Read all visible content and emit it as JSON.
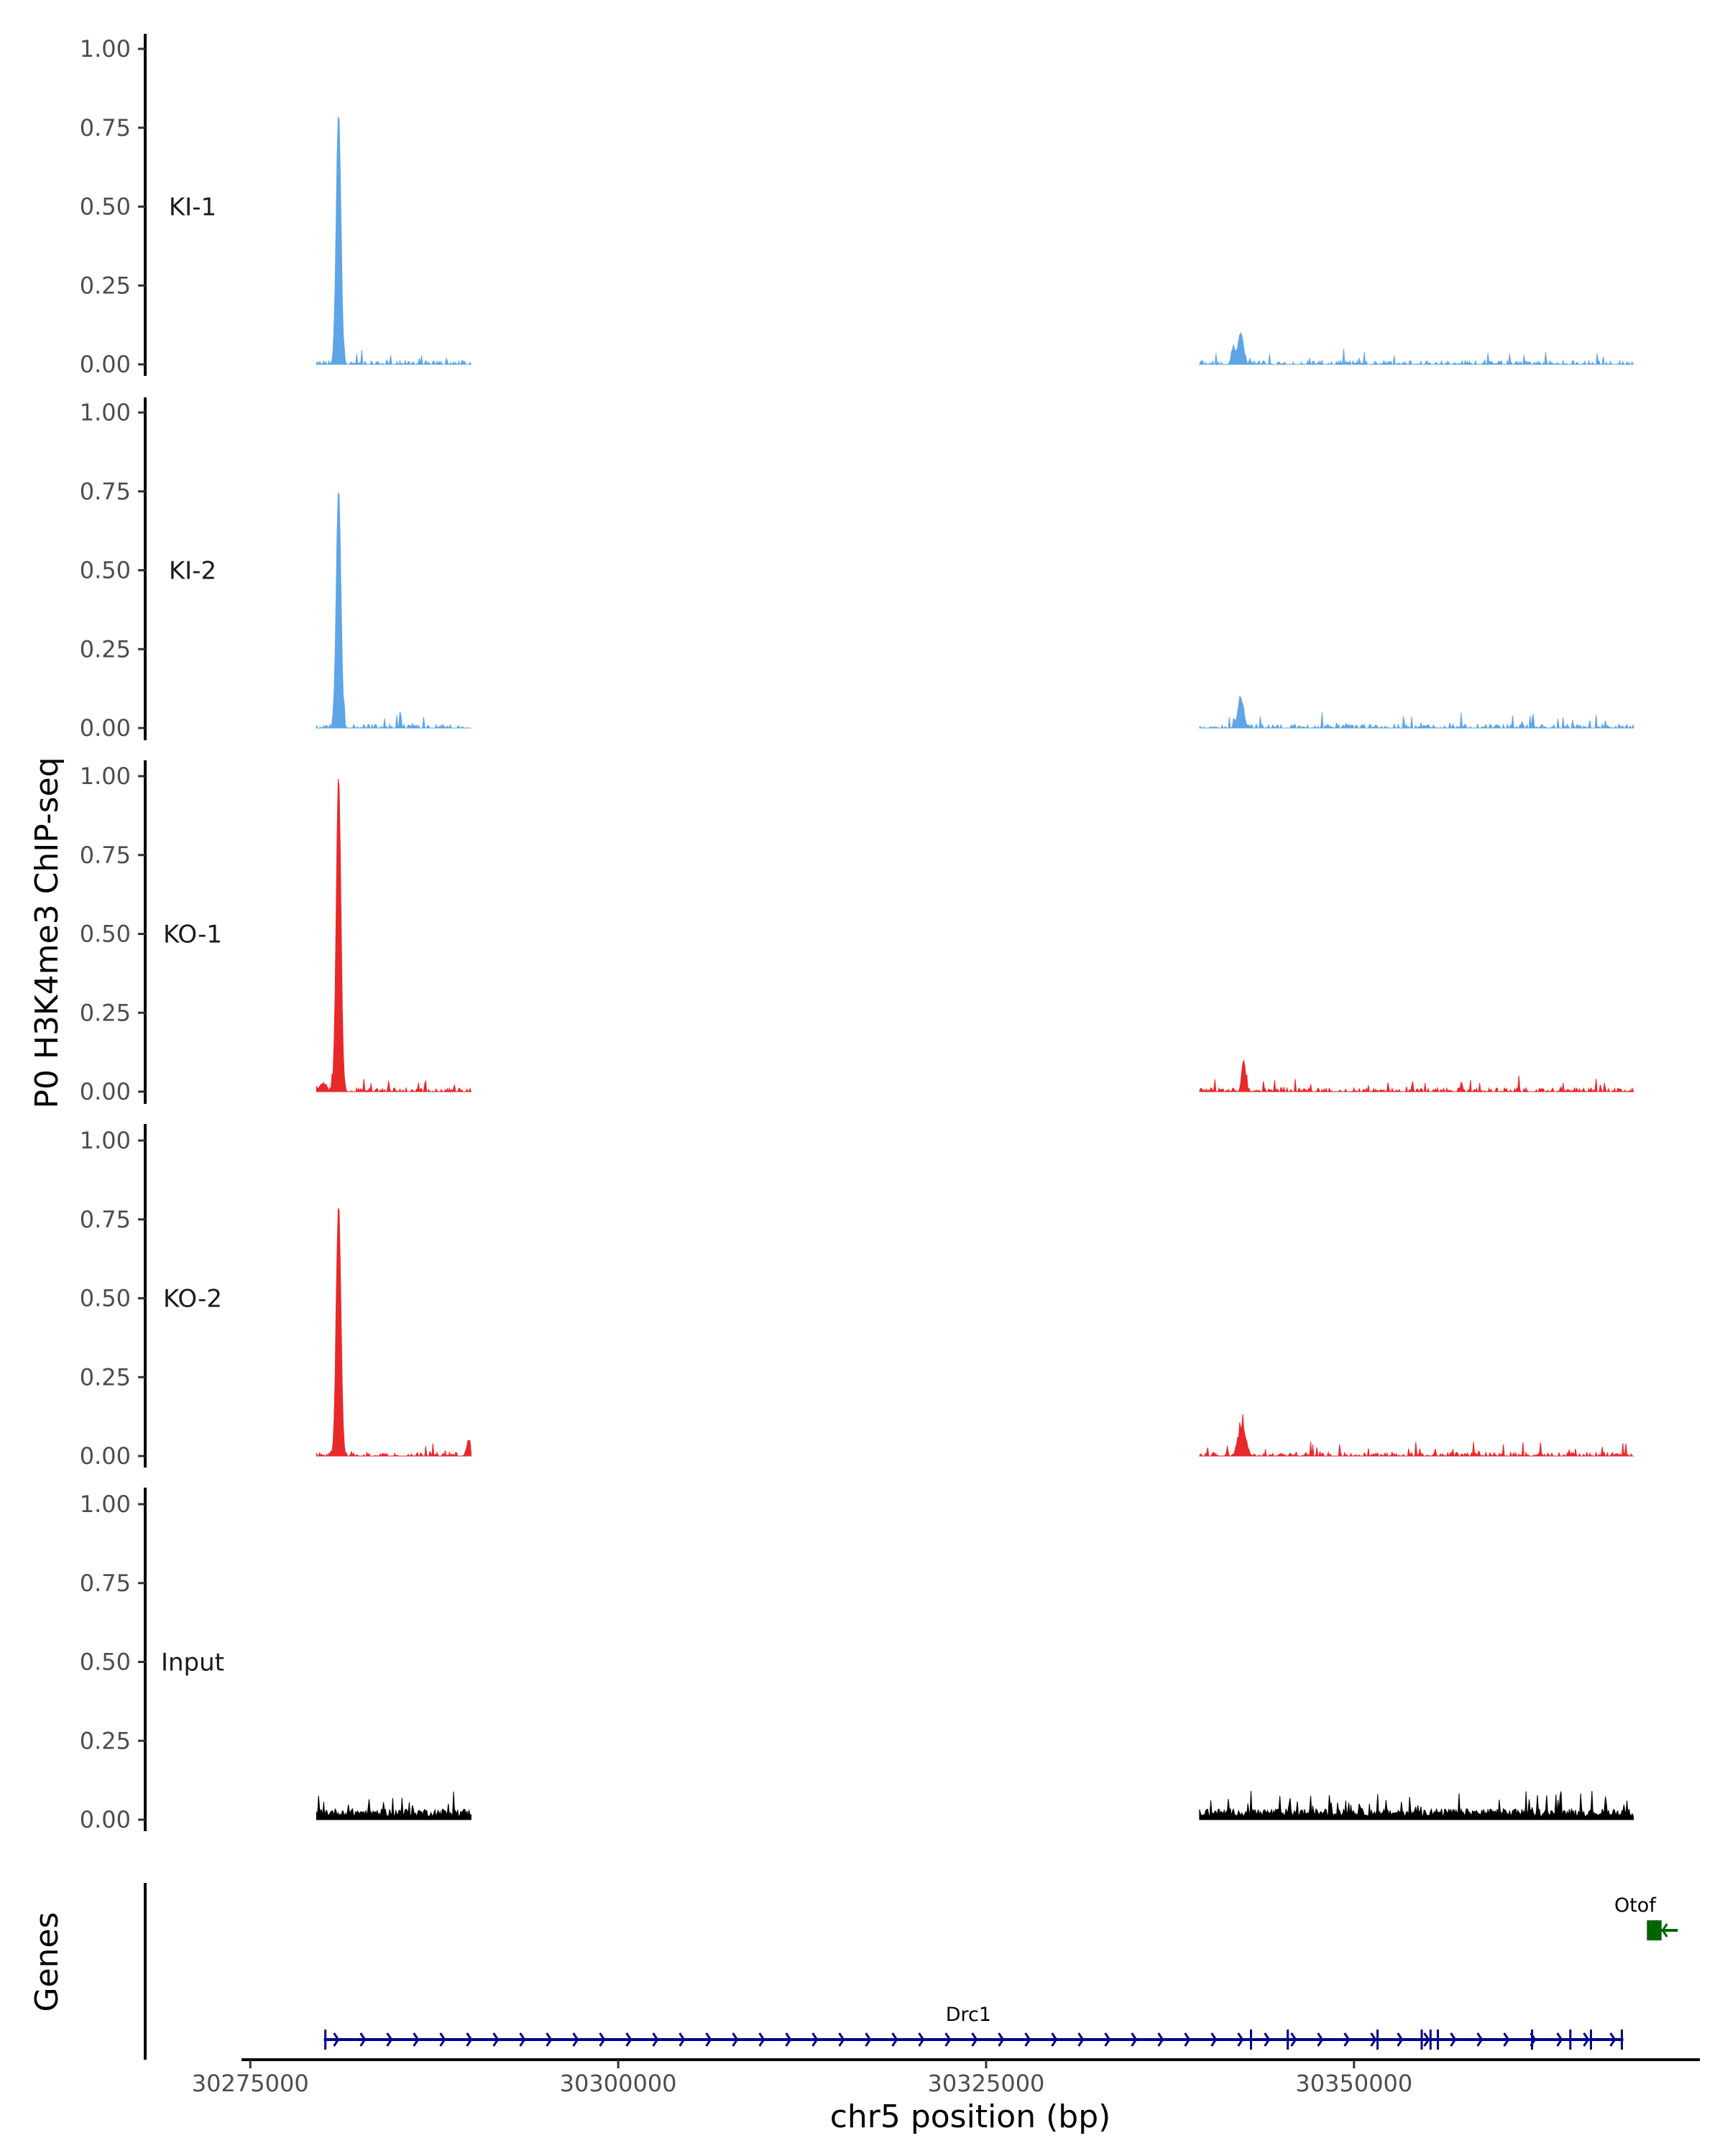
{
  "chart_data": {
    "type": "area",
    "title": "",
    "ylabel": "P0 H3K4me3 ChIP-seq",
    "xlabel": "chr5 position (bp)",
    "genes_label": "Genes",
    "xlim": [
      30274500,
      30373500
    ],
    "ylim": [
      0,
      1
    ],
    "x_ticks": [
      30275000,
      30300000,
      30325000,
      30350000
    ],
    "x_tick_labels": [
      "30275000",
      "30300000",
      "30325000",
      "30350000"
    ],
    "y_ticks": [
      0,
      0.25,
      0.5,
      0.75,
      1
    ],
    "y_tick_labels": [
      "0.00",
      "0.25",
      "0.50",
      "0.75",
      "1.00"
    ],
    "covered_regions": [
      [
        30279500,
        30290000
      ],
      [
        30339500,
        30369000
      ]
    ],
    "tracks": [
      {
        "name": "KI-1",
        "color": "#5DA5E6",
        "peaks": [
          [
            30281000,
            0.8,
            220
          ],
          [
            30342300,
            0.1,
            260
          ],
          [
            30341800,
            0.05,
            180
          ]
        ],
        "noise": 0.012,
        "spike": 0.04,
        "gappy": true
      },
      {
        "name": "KI-2",
        "color": "#5DA5E6",
        "peaks": [
          [
            30281000,
            0.76,
            220
          ],
          [
            30342300,
            0.09,
            280
          ],
          [
            30285200,
            0.05,
            80
          ]
        ],
        "noise": 0.012,
        "spike": 0.04,
        "gappy": true
      },
      {
        "name": "KO-1",
        "color": "#E8292A",
        "peaks": [
          [
            30281000,
            1.0,
            220
          ],
          [
            30342500,
            0.1,
            180
          ],
          [
            30279900,
            0.025,
            300
          ]
        ],
        "noise": 0.012,
        "spike": 0.04,
        "gappy": true
      },
      {
        "name": "KO-2",
        "color": "#E8292A",
        "peaks": [
          [
            30281000,
            0.8,
            220
          ],
          [
            30342400,
            0.09,
            350
          ],
          [
            30289800,
            0.05,
            120
          ]
        ],
        "noise": 0.012,
        "spike": 0.04,
        "gappy": true
      },
      {
        "name": "Input",
        "color": "#000000",
        "peaks": [],
        "noise": 0.035,
        "spike": 0.06,
        "gappy": false
      }
    ],
    "genes": [
      {
        "name": "Drc1",
        "color": "#00008B",
        "start": 30280000,
        "end": 30368300,
        "strand": "+",
        "label_x": 30323800,
        "exons": [
          30280100,
          30343000,
          30345500,
          30351600,
          30354600,
          30355200,
          30355700,
          30362100,
          30364700,
          30366100,
          30368200
        ]
      },
      {
        "name": "Otof",
        "color": "#006400",
        "start": 30370000,
        "end": 30372000,
        "strand": "-",
        "label_x": 30369100,
        "exons": [
          30370000,
          30370200,
          30370400,
          30370600,
          30370800
        ]
      }
    ]
  }
}
